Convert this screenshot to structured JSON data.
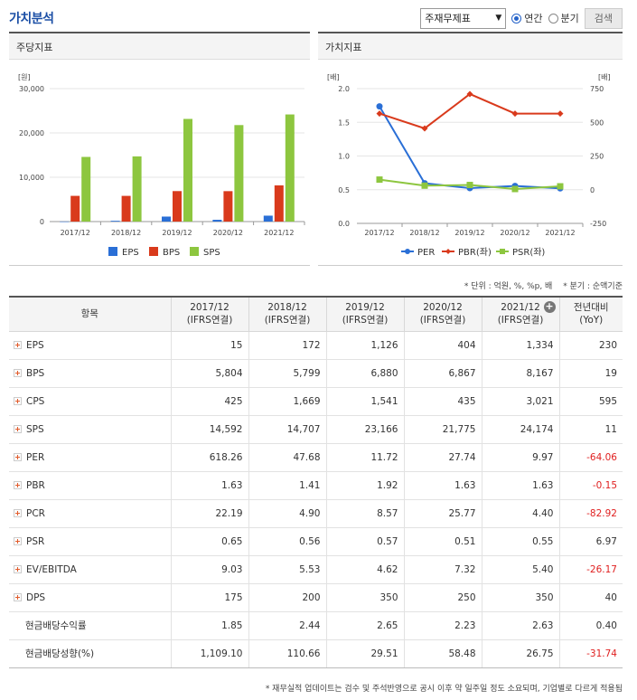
{
  "header": {
    "title": "가치분석",
    "select_value": "주재무제표",
    "radio_annual": "연간",
    "radio_quarter": "분기",
    "search_label": "검색"
  },
  "left_panel": {
    "title": "주당지표"
  },
  "right_panel": {
    "title": "가치지표"
  },
  "chart_data": [
    {
      "type": "bar",
      "title": "주당지표",
      "ylabel": "[원]",
      "categories": [
        "2017/12",
        "2018/12",
        "2019/12",
        "2020/12",
        "2021/12"
      ],
      "yticks": [
        "30,000",
        "20,000",
        "10,000",
        "0"
      ],
      "ylim": [
        0,
        30000
      ],
      "series": [
        {
          "name": "EPS",
          "color": "#2a6fd6",
          "values": [
            15,
            172,
            1126,
            404,
            1334
          ]
        },
        {
          "name": "BPS",
          "color": "#d93a1c",
          "values": [
            5804,
            5799,
            6880,
            6867,
            8167
          ]
        },
        {
          "name": "SPS",
          "color": "#8dc63f",
          "values": [
            14592,
            14707,
            23166,
            21775,
            24174
          ]
        }
      ]
    },
    {
      "type": "line",
      "title": "가치지표",
      "ylabel_left": "[배]",
      "ylabel_right": "[배]",
      "categories": [
        "2017/12",
        "2018/12",
        "2019/12",
        "2020/12",
        "2021/12"
      ],
      "yticks_left": [
        "2.0",
        "1.5",
        "1.0",
        "0.5",
        "0.0"
      ],
      "yticks_right": [
        "750",
        "500",
        "250",
        "0",
        "-250"
      ],
      "ylim_left": [
        0,
        2
      ],
      "ylim_right": [
        -250,
        750
      ],
      "series": [
        {
          "name": "PER",
          "axis": "right",
          "color": "#2a6fd6",
          "marker": "circle",
          "values": [
            618.26,
            47.68,
            11.72,
            27.74,
            9.97
          ]
        },
        {
          "name": "PBR(좌)",
          "axis": "left",
          "color": "#d93a1c",
          "marker": "diamond",
          "values": [
            1.63,
            1.41,
            1.92,
            1.63,
            1.63
          ]
        },
        {
          "name": "PSR(좌)",
          "axis": "left",
          "color": "#8dc63f",
          "marker": "square",
          "values": [
            0.65,
            0.56,
            0.57,
            0.51,
            0.55
          ]
        }
      ]
    }
  ],
  "unit_note": "* 단위 : 억원, %, %p, 배 　* 분기 : 순액기준",
  "table": {
    "headers": [
      {
        "l1": "항목",
        "l2": ""
      },
      {
        "l1": "2017/12",
        "l2": "(IFRS연결)"
      },
      {
        "l1": "2018/12",
        "l2": "(IFRS연결)"
      },
      {
        "l1": "2019/12",
        "l2": "(IFRS연결)"
      },
      {
        "l1": "2020/12",
        "l2": "(IFRS연결)"
      },
      {
        "l1": "2021/12",
        "l2": "(IFRS연결)"
      },
      {
        "l1": "전년대비",
        "l2": "(YoY)"
      }
    ],
    "rows": [
      {
        "name": "EPS",
        "expand": true,
        "values": [
          "15",
          "172",
          "1,126",
          "404",
          "1,334",
          "230"
        ],
        "neg": false
      },
      {
        "name": "BPS",
        "expand": true,
        "values": [
          "5,804",
          "5,799",
          "6,880",
          "6,867",
          "8,167",
          "19"
        ],
        "neg": false
      },
      {
        "name": "CPS",
        "expand": true,
        "values": [
          "425",
          "1,669",
          "1,541",
          "435",
          "3,021",
          "595"
        ],
        "neg": false
      },
      {
        "name": "SPS",
        "expand": true,
        "values": [
          "14,592",
          "14,707",
          "23,166",
          "21,775",
          "24,174",
          "11"
        ],
        "neg": false
      },
      {
        "name": "PER",
        "expand": true,
        "values": [
          "618.26",
          "47.68",
          "11.72",
          "27.74",
          "9.97",
          "-64.06"
        ],
        "neg": true
      },
      {
        "name": "PBR",
        "expand": true,
        "values": [
          "1.63",
          "1.41",
          "1.92",
          "1.63",
          "1.63",
          "-0.15"
        ],
        "neg": true
      },
      {
        "name": "PCR",
        "expand": true,
        "values": [
          "22.19",
          "4.90",
          "8.57",
          "25.77",
          "4.40",
          "-82.92"
        ],
        "neg": true
      },
      {
        "name": "PSR",
        "expand": true,
        "values": [
          "0.65",
          "0.56",
          "0.57",
          "0.51",
          "0.55",
          "6.97"
        ],
        "neg": false
      },
      {
        "name": "EV/EBITDA",
        "expand": true,
        "values": [
          "9.03",
          "5.53",
          "4.62",
          "7.32",
          "5.40",
          "-26.17"
        ],
        "neg": true
      },
      {
        "name": "DPS",
        "expand": true,
        "values": [
          "175",
          "200",
          "350",
          "250",
          "350",
          "40"
        ],
        "neg": false
      },
      {
        "name": "현금배당수익률",
        "expand": false,
        "values": [
          "1.85",
          "2.44",
          "2.65",
          "2.23",
          "2.63",
          "0.40"
        ],
        "neg": false
      },
      {
        "name": "현금배당성향(%)",
        "expand": false,
        "values": [
          "1,109.10",
          "110.66",
          "29.51",
          "58.48",
          "26.75",
          "-31.74"
        ],
        "neg": true
      }
    ]
  },
  "footnote": "* 재무실적 업데이트는 검수 및 주석반영으로 공시 이후 약 일주일 정도 소요되며, 기업별로 다르게 적용됨"
}
